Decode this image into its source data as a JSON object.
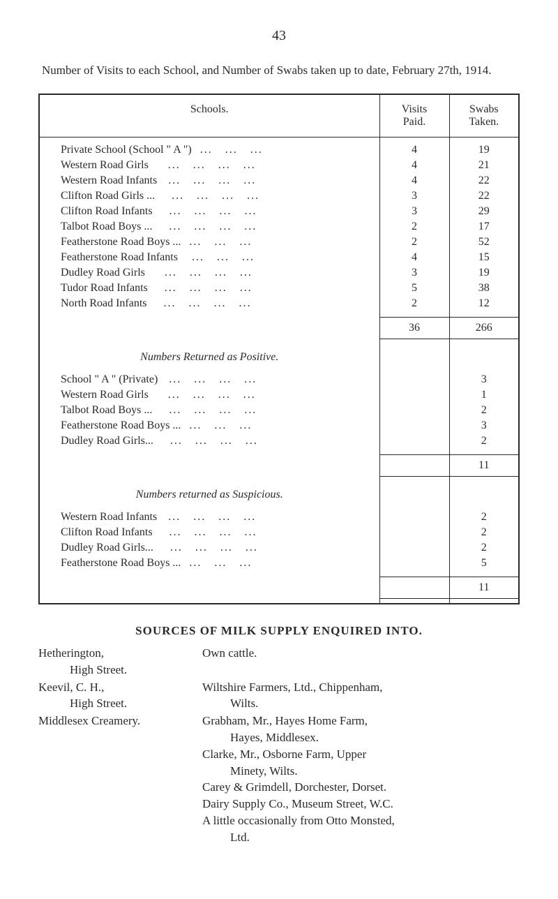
{
  "page_number": "43",
  "title": "Number of Visits to each School, and Number of Swabs taken up to date, February 27th, 1914.",
  "table": {
    "headers": [
      "Schools.",
      "Visits Paid.",
      "Swabs Taken."
    ],
    "sections": [
      {
        "rows": [
          {
            "name": "Private School (School \" A \")",
            "visits": "4",
            "swabs": "19"
          },
          {
            "name": "Western Road Girls",
            "visits": "4",
            "swabs": "21"
          },
          {
            "name": "Western Road Infants",
            "visits": "4",
            "swabs": "22"
          },
          {
            "name": "Clifton Road Girls ...",
            "visits": "3",
            "swabs": "22"
          },
          {
            "name": "Clifton Road Infants",
            "visits": "3",
            "swabs": "29"
          },
          {
            "name": "Talbot Road Boys ...",
            "visits": "2",
            "swabs": "17"
          },
          {
            "name": "Featherstone Road Boys ...",
            "visits": "2",
            "swabs": "52"
          },
          {
            "name": "Featherstone Road Infants",
            "visits": "4",
            "swabs": "15"
          },
          {
            "name": "Dudley Road Girls",
            "visits": "3",
            "swabs": "19"
          },
          {
            "name": "Tudor Road Infants",
            "visits": "5",
            "swabs": "38"
          },
          {
            "name": "North Road Infants",
            "visits": "2",
            "swabs": "12"
          }
        ],
        "total": {
          "visits": "36",
          "swabs": "266"
        }
      },
      {
        "title": "Numbers Returned as Positive.",
        "rows": [
          {
            "name": "School \" A \" (Private)",
            "visits": "",
            "swabs": "3"
          },
          {
            "name": "Western Road Girls",
            "visits": "",
            "swabs": "1"
          },
          {
            "name": "Talbot Road Boys ...",
            "visits": "",
            "swabs": "2"
          },
          {
            "name": "Featherstone Road Boys ...",
            "visits": "",
            "swabs": "3"
          },
          {
            "name": "Dudley Road Girls...",
            "visits": "",
            "swabs": "2"
          }
        ],
        "total": {
          "visits": "",
          "swabs": "11"
        }
      },
      {
        "title": "Numbers returned as Suspicious.",
        "rows": [
          {
            "name": "Western Road Infants",
            "visits": "",
            "swabs": "2"
          },
          {
            "name": "Clifton Road Infants",
            "visits": "",
            "swabs": "2"
          },
          {
            "name": "Dudley Road Girls...",
            "visits": "",
            "swabs": "2"
          },
          {
            "name": "Featherstone Road Boys ...",
            "visits": "",
            "swabs": "5"
          }
        ],
        "total": {
          "visits": "",
          "swabs": "11"
        }
      }
    ]
  },
  "sources": {
    "title": "SOURCES OF MILK SUPPLY ENQUIRED INTO.",
    "items": [
      {
        "supplier": "Hetherington,",
        "supplier_line2": "High Street.",
        "details": [
          "Own cattle."
        ]
      },
      {
        "supplier": "Keevil, C. H.,",
        "supplier_line2": "High Street.",
        "details": [
          "Wiltshire Farmers, Ltd., Chippenham,",
          "Wilts."
        ]
      },
      {
        "supplier": "Middlesex Creamery.",
        "supplier_line2": "",
        "details": [
          "Grabham, Mr., Hayes Home Farm,",
          "Hayes, Middlesex.",
          "Clarke, Mr., Osborne Farm, Upper",
          "Minety, Wilts.",
          "Carey & Grimdell, Dorchester, Dorset.",
          "Dairy Supply Co., Museum Street, W.C.",
          "A little occasionally from Otto Monsted,",
          "Ltd."
        ]
      }
    ]
  },
  "dots_fill": "...   ...   ...   ..."
}
